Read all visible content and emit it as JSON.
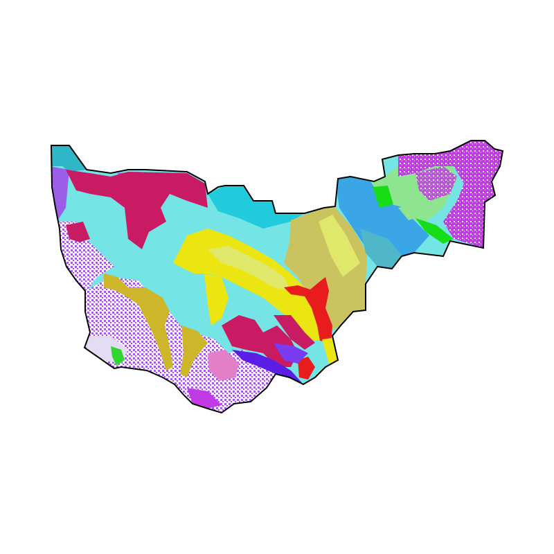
{
  "map": {
    "background": "#ffffff",
    "outline_color": "#000000",
    "palette": {
      "turquoise": "#74e4e4",
      "cyan_dark": "#22cbdc",
      "teal": "#2fb7c7",
      "crimson": "#c91b63",
      "yellow": "#ebe612",
      "yellow_pale": "#dfe86a",
      "olive": "#cbc35f",
      "mustard": "#cdb62a",
      "red": "#e81c1c",
      "sky_blue": "#3aa6e6",
      "steel_blue": "#4fb7c8",
      "green_bright": "#16dd16",
      "green_pale": "#8fe48f",
      "magenta": "#c23ae6",
      "purple": "#9a5ee8",
      "violet": "#7a3cf0",
      "blue_violet": "#5a1ee6",
      "pink": "#e37fc6",
      "lavender": "#e4dcf4",
      "snow": "#ffffff",
      "green_lime": "#2ed82e"
    }
  }
}
